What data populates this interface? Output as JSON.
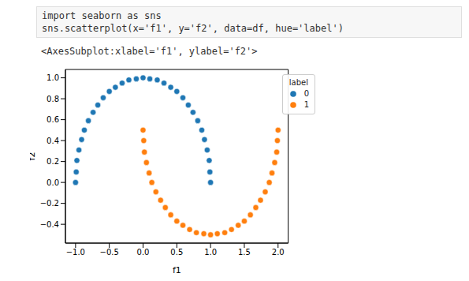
{
  "chart_data": {
    "type": "scatter",
    "annotations": [
      "import seaborn as sns",
      "sns.scatterplot(x='f1', y='f2', data=df, hue='label')",
      "<AxesSubplot:xlabel='f1', ylabel='f2'>"
    ],
    "x_label": "f1",
    "y_label": "f2",
    "legend_title": "label",
    "legend": "upper right",
    "grid": false,
    "marker": "circle",
    "xlim": [
      -1.15,
      2.15
    ],
    "xticks": [
      {
        "value": -1.0,
        "label": "−1.0"
      },
      {
        "value": -0.5,
        "label": "−0.5"
      },
      {
        "value": 0.0,
        "label": "0.0"
      },
      {
        "value": 0.5,
        "label": "0.5"
      },
      {
        "value": 1.0,
        "label": "1.0"
      },
      {
        "value": 1.5,
        "label": "1.5"
      },
      {
        "value": 2.0,
        "label": "2.0"
      }
    ],
    "ylim": [
      -0.58,
      1.08
    ],
    "yticks": [
      {
        "value": -0.4,
        "label": "−0.4"
      },
      {
        "value": -0.2,
        "label": "−0.2"
      },
      {
        "value": 0.0,
        "label": "0.0"
      },
      {
        "value": 0.2,
        "label": "0.2"
      },
      {
        "value": 0.4,
        "label": "0.4"
      },
      {
        "value": 0.6,
        "label": "0.6"
      },
      {
        "value": 0.8,
        "label": "0.8"
      },
      {
        "value": 1.0,
        "label": "1.0"
      }
    ],
    "series": [
      {
        "name": "0",
        "color": "#1f77b4",
        "x": [
          1.0,
          0.99,
          0.98,
          0.95,
          0.91,
          0.87,
          0.81,
          0.74,
          0.67,
          0.59,
          0.5,
          0.41,
          0.31,
          0.21,
          0.1,
          0.0,
          -0.1,
          -0.21,
          -0.31,
          -0.41,
          -0.5,
          -0.59,
          -0.67,
          -0.74,
          -0.81,
          -0.87,
          -0.91,
          -0.95,
          -0.98,
          -0.99,
          -1.0
        ],
        "values": [
          0.0,
          0.1,
          0.21,
          0.31,
          0.41,
          0.5,
          0.59,
          0.67,
          0.74,
          0.81,
          0.87,
          0.91,
          0.95,
          0.98,
          0.99,
          1.0,
          0.99,
          0.98,
          0.95,
          0.91,
          0.87,
          0.81,
          0.74,
          0.67,
          0.59,
          0.5,
          0.41,
          0.31,
          0.21,
          0.1,
          0.0
        ]
      },
      {
        "name": "1",
        "color": "#ff7f0e",
        "x": [
          0.0,
          0.01,
          0.02,
          0.05,
          0.09,
          0.13,
          0.19,
          0.26,
          0.33,
          0.41,
          0.5,
          0.59,
          0.69,
          0.79,
          0.9,
          1.0,
          1.1,
          1.21,
          1.31,
          1.41,
          1.5,
          1.59,
          1.67,
          1.74,
          1.81,
          1.87,
          1.91,
          1.95,
          1.98,
          1.99,
          2.0
        ],
        "values": [
          0.5,
          0.4,
          0.29,
          0.19,
          0.09,
          0.0,
          -0.09,
          -0.17,
          -0.24,
          -0.31,
          -0.37,
          -0.41,
          -0.45,
          -0.48,
          -0.49,
          -0.5,
          -0.49,
          -0.48,
          -0.45,
          -0.41,
          -0.37,
          -0.31,
          -0.24,
          -0.17,
          -0.09,
          0.0,
          0.09,
          0.19,
          0.29,
          0.4,
          0.5
        ]
      }
    ]
  }
}
